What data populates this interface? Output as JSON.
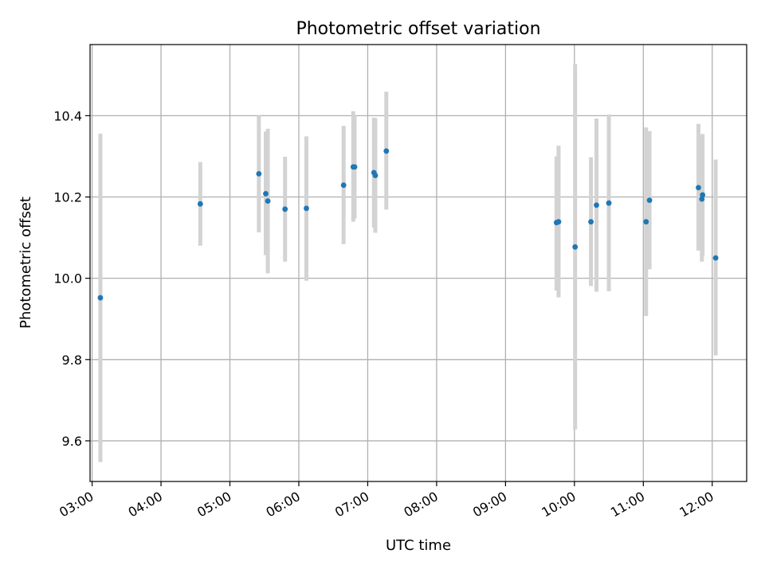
{
  "chart_data": {
    "type": "scatter",
    "title": "Photometric offset variation",
    "xlabel": "UTC time",
    "ylabel": "Photometric offset",
    "x_unit": "hours (UTC)",
    "xlim": [
      2.97,
      12.5
    ],
    "ylim": [
      9.5,
      10.575
    ],
    "grid": true,
    "x_ticks": [
      {
        "value": 3,
        "label": "03:00"
      },
      {
        "value": 4,
        "label": "04:00"
      },
      {
        "value": 5,
        "label": "05:00"
      },
      {
        "value": 6,
        "label": "06:00"
      },
      {
        "value": 7,
        "label": "07:00"
      },
      {
        "value": 8,
        "label": "08:00"
      },
      {
        "value": 9,
        "label": "09:00"
      },
      {
        "value": 10,
        "label": "10:00"
      },
      {
        "value": 11,
        "label": "11:00"
      },
      {
        "value": 12,
        "label": "12:00"
      }
    ],
    "y_ticks": [
      {
        "value": 9.6,
        "label": "9.6"
      },
      {
        "value": 9.8,
        "label": "9.8"
      },
      {
        "value": 10.0,
        "label": "10.0"
      },
      {
        "value": 10.2,
        "label": "10.2"
      },
      {
        "value": 10.4,
        "label": "10.4"
      }
    ],
    "colors": {
      "point": "#1f77b4",
      "errorbar": "#d3d3d3",
      "grid": "#b0b0b0"
    },
    "points": [
      {
        "x": 3.12,
        "y": 9.952,
        "low": 9.548,
        "high": 10.356
      },
      {
        "x": 4.57,
        "y": 10.183,
        "low": 10.08,
        "high": 10.286
      },
      {
        "x": 5.42,
        "y": 10.257,
        "low": 10.113,
        "high": 10.4
      },
      {
        "x": 5.52,
        "y": 10.208,
        "low": 10.057,
        "high": 10.361
      },
      {
        "x": 5.55,
        "y": 10.19,
        "low": 10.012,
        "high": 10.368
      },
      {
        "x": 5.8,
        "y": 10.17,
        "low": 10.041,
        "high": 10.299
      },
      {
        "x": 6.11,
        "y": 10.172,
        "low": 9.994,
        "high": 10.349
      },
      {
        "x": 6.65,
        "y": 10.229,
        "low": 10.084,
        "high": 10.375
      },
      {
        "x": 6.79,
        "y": 10.274,
        "low": 10.139,
        "high": 10.411
      },
      {
        "x": 6.81,
        "y": 10.274,
        "low": 10.147,
        "high": 10.4
      },
      {
        "x": 7.09,
        "y": 10.26,
        "low": 10.125,
        "high": 10.395
      },
      {
        "x": 7.11,
        "y": 10.253,
        "low": 10.112,
        "high": 10.394
      },
      {
        "x": 7.27,
        "y": 10.313,
        "low": 10.169,
        "high": 10.459
      },
      {
        "x": 9.74,
        "y": 10.137,
        "low": 9.97,
        "high": 10.3
      },
      {
        "x": 9.77,
        "y": 10.139,
        "low": 9.953,
        "high": 10.326
      },
      {
        "x": 10.01,
        "y": 10.077,
        "low": 9.628,
        "high": 10.527
      },
      {
        "x": 10.24,
        "y": 10.139,
        "low": 9.981,
        "high": 10.298
      },
      {
        "x": 10.32,
        "y": 10.18,
        "low": 9.967,
        "high": 10.393
      },
      {
        "x": 10.5,
        "y": 10.185,
        "low": 9.968,
        "high": 10.403
      },
      {
        "x": 11.04,
        "y": 10.139,
        "low": 9.907,
        "high": 10.371
      },
      {
        "x": 11.09,
        "y": 10.192,
        "low": 10.022,
        "high": 10.362
      },
      {
        "x": 11.8,
        "y": 10.223,
        "low": 10.068,
        "high": 10.38
      },
      {
        "x": 11.85,
        "y": 10.195,
        "low": 10.041,
        "high": 10.349
      },
      {
        "x": 11.86,
        "y": 10.205,
        "low": 10.056,
        "high": 10.355
      },
      {
        "x": 12.05,
        "y": 10.05,
        "low": 9.81,
        "high": 10.292
      }
    ]
  }
}
